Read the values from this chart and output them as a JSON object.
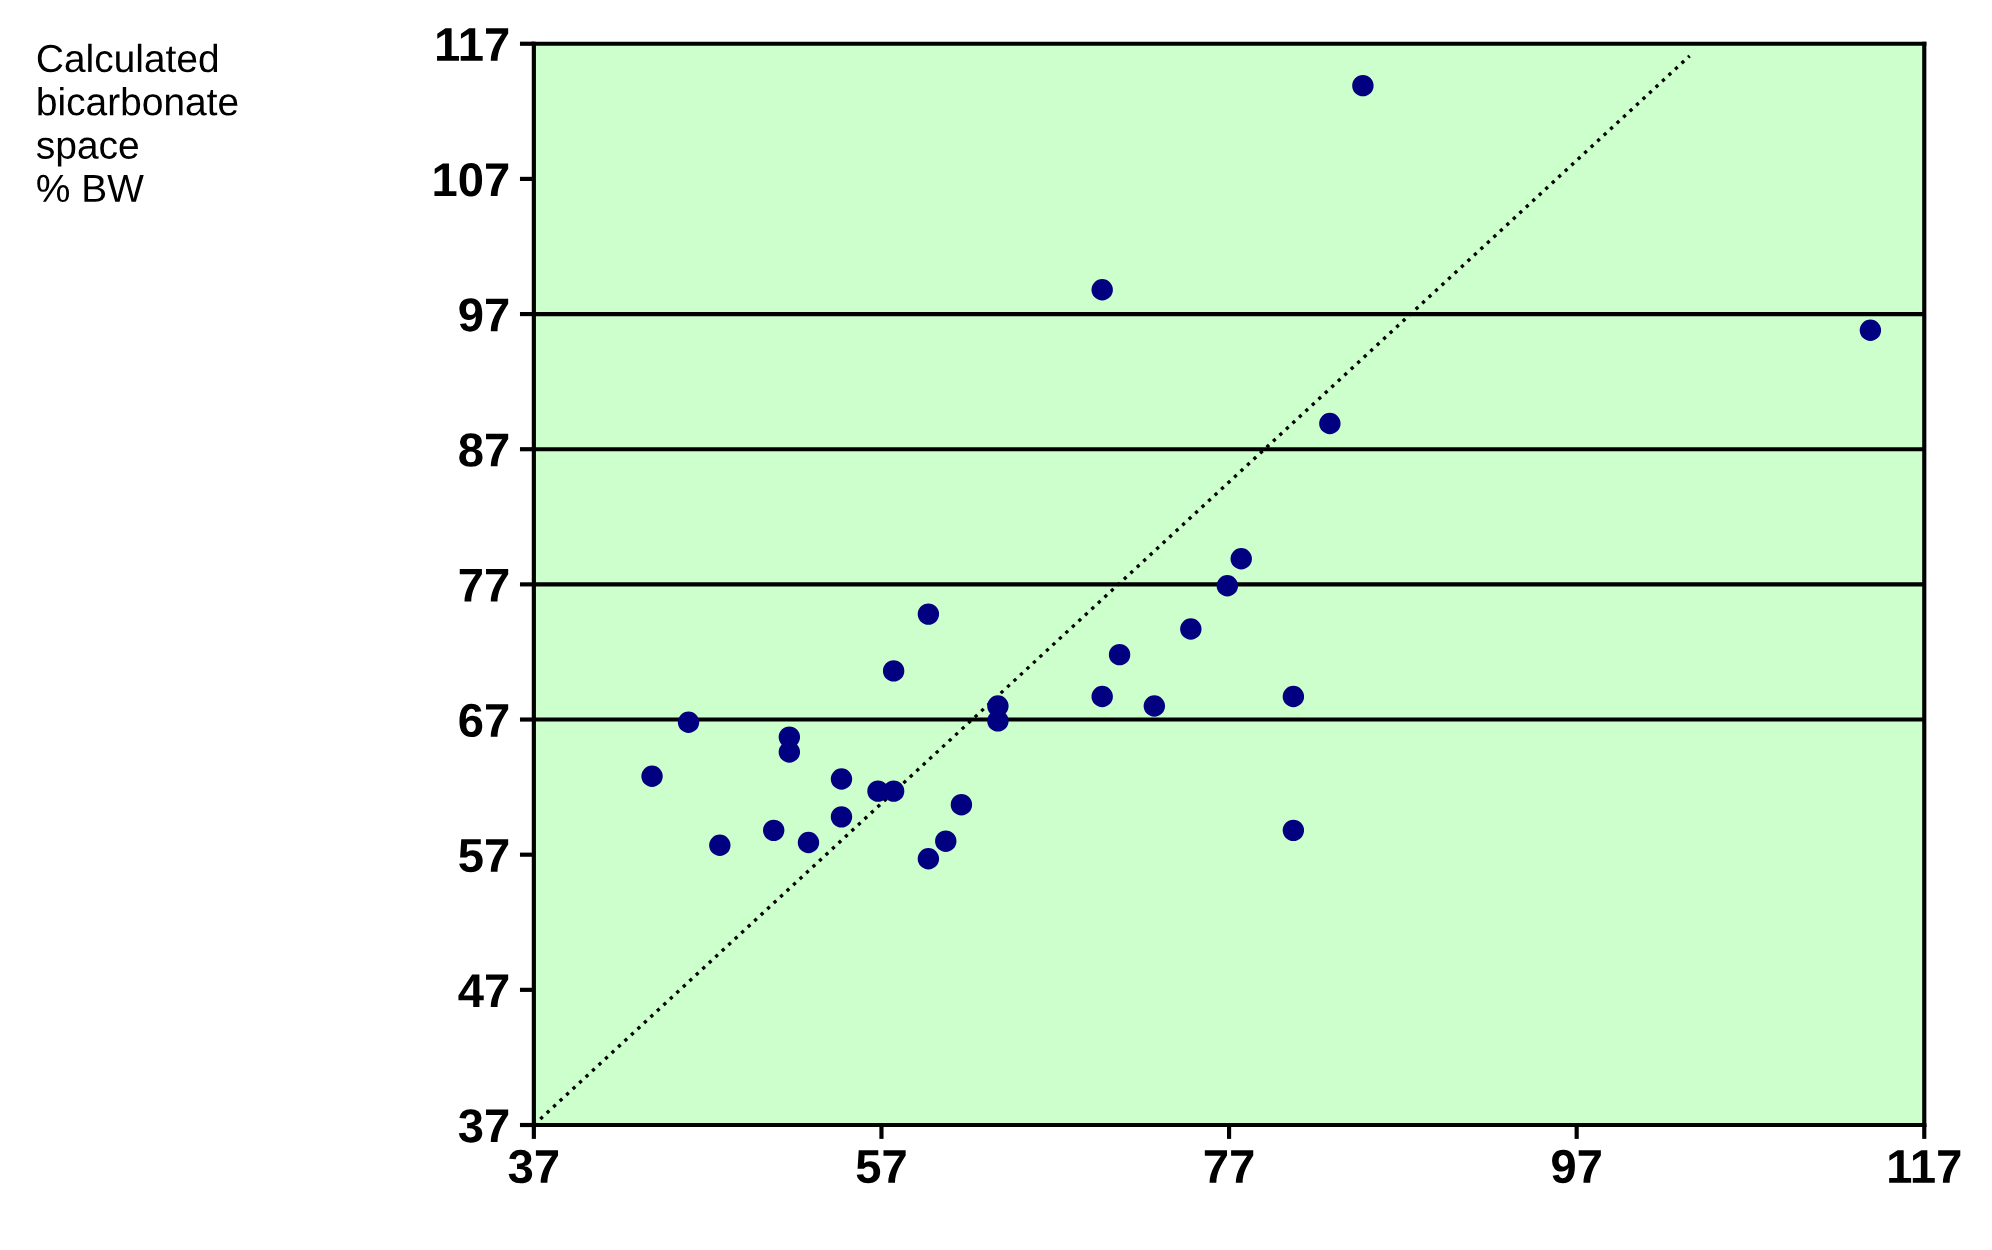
{
  "chart_data": {
    "type": "scatter",
    "annotations": [
      "Calculated\nbicarbonate\nspace\n% BW"
    ],
    "xlim": [
      37,
      117
    ],
    "ylim": [
      37,
      117
    ],
    "xticks": [
      37,
      57,
      77,
      97,
      117
    ],
    "yticks": [
      37,
      47,
      57,
      67,
      77,
      87,
      97,
      107,
      117
    ],
    "grid": false,
    "ref_lines": [
      {
        "axis": "y",
        "value": 67,
        "color": "#000000"
      },
      {
        "axis": "y",
        "value": 77,
        "color": "#000000"
      },
      {
        "axis": "y",
        "value": 87,
        "color": "#000000"
      },
      {
        "axis": "y",
        "value": 97,
        "color": "#000000"
      }
    ],
    "series": [
      {
        "color": "#000080",
        "marker": "circle",
        "x": [
          84.7,
          69.7,
          113.9,
          82.8,
          77.7,
          76.9,
          74.8,
          70.7,
          69.7,
          72.7,
          80.7,
          80.7,
          63.7,
          63.7,
          59.7,
          57.7,
          45.9,
          43.8,
          51.7,
          51.7,
          54.7,
          47.7,
          50.8,
          52.8,
          54.7,
          56.8,
          57.7,
          61.6,
          60.7,
          59.7
        ],
        "values": [
          113.9,
          98.8,
          95.8,
          88.9,
          78.9,
          76.9,
          73.7,
          71.8,
          68.7,
          68.0,
          68.7,
          58.8,
          68.0,
          66.9,
          74.8,
          70.6,
          66.8,
          62.8,
          65.7,
          64.6,
          62.6,
          57.7,
          58.8,
          57.9,
          59.8,
          61.7,
          61.7,
          60.7,
          58.0,
          56.7
        ]
      },
      {
        "type": "line",
        "line_style": "dotted",
        "color": "#000000",
        "x": [
          37,
          103.5
        ],
        "values": [
          37,
          116.1
        ]
      }
    ]
  }
}
